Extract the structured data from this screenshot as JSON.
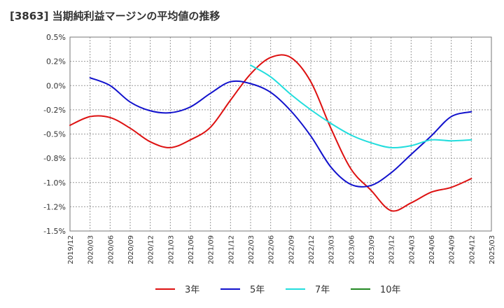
{
  "chart_data": {
    "type": "line",
    "title": "[3863]  当期純利益マージンの平均値の推移",
    "xlabel": "",
    "ylabel": "",
    "ylim": [
      -1.5,
      0.5
    ],
    "y_ticks": [
      "0.5%",
      "0.2%",
      "0.0%",
      "-0.2%",
      "-0.5%",
      "-0.8%",
      "-1.0%",
      "-1.2%",
      "-1.5%"
    ],
    "x_ticks": [
      "2019/12",
      "2020/03",
      "2020/06",
      "2020/09",
      "2020/12",
      "2021/03",
      "2021/06",
      "2021/09",
      "2021/12",
      "2022/03",
      "2022/06",
      "2022/09",
      "2022/12",
      "2023/03",
      "2023/06",
      "2023/09",
      "2023/12",
      "2024/03",
      "2024/06",
      "2024/09",
      "2024/12",
      "2025/03"
    ],
    "grid": true,
    "legend_position": "bottom",
    "series": [
      {
        "name": "3年",
        "color": "#dd1111",
        "points": [
          [
            "2019/12",
            -0.41
          ],
          [
            "2020/03",
            -0.32
          ],
          [
            "2020/06",
            -0.33
          ],
          [
            "2020/09",
            -0.44
          ],
          [
            "2020/12",
            -0.58
          ],
          [
            "2021/03",
            -0.64
          ],
          [
            "2021/06",
            -0.56
          ],
          [
            "2021/09",
            -0.43
          ],
          [
            "2021/12",
            -0.15
          ],
          [
            "2022/03",
            0.12
          ],
          [
            "2022/06",
            0.29
          ],
          [
            "2022/09",
            0.29
          ],
          [
            "2022/12",
            0.04
          ],
          [
            "2023/03",
            -0.44
          ],
          [
            "2023/06",
            -0.86
          ],
          [
            "2023/09",
            -1.08
          ],
          [
            "2023/12",
            -1.29
          ],
          [
            "2024/03",
            -1.21
          ],
          [
            "2024/06",
            -1.1
          ],
          [
            "2024/09",
            -1.05
          ],
          [
            "2024/12",
            -0.96
          ]
        ]
      },
      {
        "name": "5年",
        "color": "#1111cc",
        "points": [
          [
            "2020/03",
            0.08
          ],
          [
            "2020/06",
            0.0
          ],
          [
            "2020/09",
            -0.17
          ],
          [
            "2020/12",
            -0.26
          ],
          [
            "2021/03",
            -0.28
          ],
          [
            "2021/06",
            -0.22
          ],
          [
            "2021/09",
            -0.08
          ],
          [
            "2021/12",
            0.04
          ],
          [
            "2022/03",
            0.02
          ],
          [
            "2022/06",
            -0.07
          ],
          [
            "2022/09",
            -0.26
          ],
          [
            "2022/12",
            -0.52
          ],
          [
            "2023/03",
            -0.84
          ],
          [
            "2023/06",
            -1.02
          ],
          [
            "2023/09",
            -1.03
          ],
          [
            "2023/12",
            -0.9
          ],
          [
            "2024/03",
            -0.71
          ],
          [
            "2024/06",
            -0.52
          ],
          [
            "2024/09",
            -0.32
          ],
          [
            "2024/12",
            -0.27
          ]
        ]
      },
      {
        "name": "7年",
        "color": "#22dddd",
        "points": [
          [
            "2022/03",
            0.21
          ],
          [
            "2022/06",
            0.09
          ],
          [
            "2022/09",
            -0.09
          ],
          [
            "2022/12",
            -0.25
          ],
          [
            "2023/03",
            -0.39
          ],
          [
            "2023/06",
            -0.51
          ],
          [
            "2023/09",
            -0.59
          ],
          [
            "2023/12",
            -0.64
          ],
          [
            "2024/03",
            -0.62
          ],
          [
            "2024/06",
            -0.56
          ],
          [
            "2024/09",
            -0.57
          ],
          [
            "2024/12",
            -0.56
          ]
        ]
      },
      {
        "name": "10年",
        "color": "#228822",
        "points": []
      }
    ]
  }
}
